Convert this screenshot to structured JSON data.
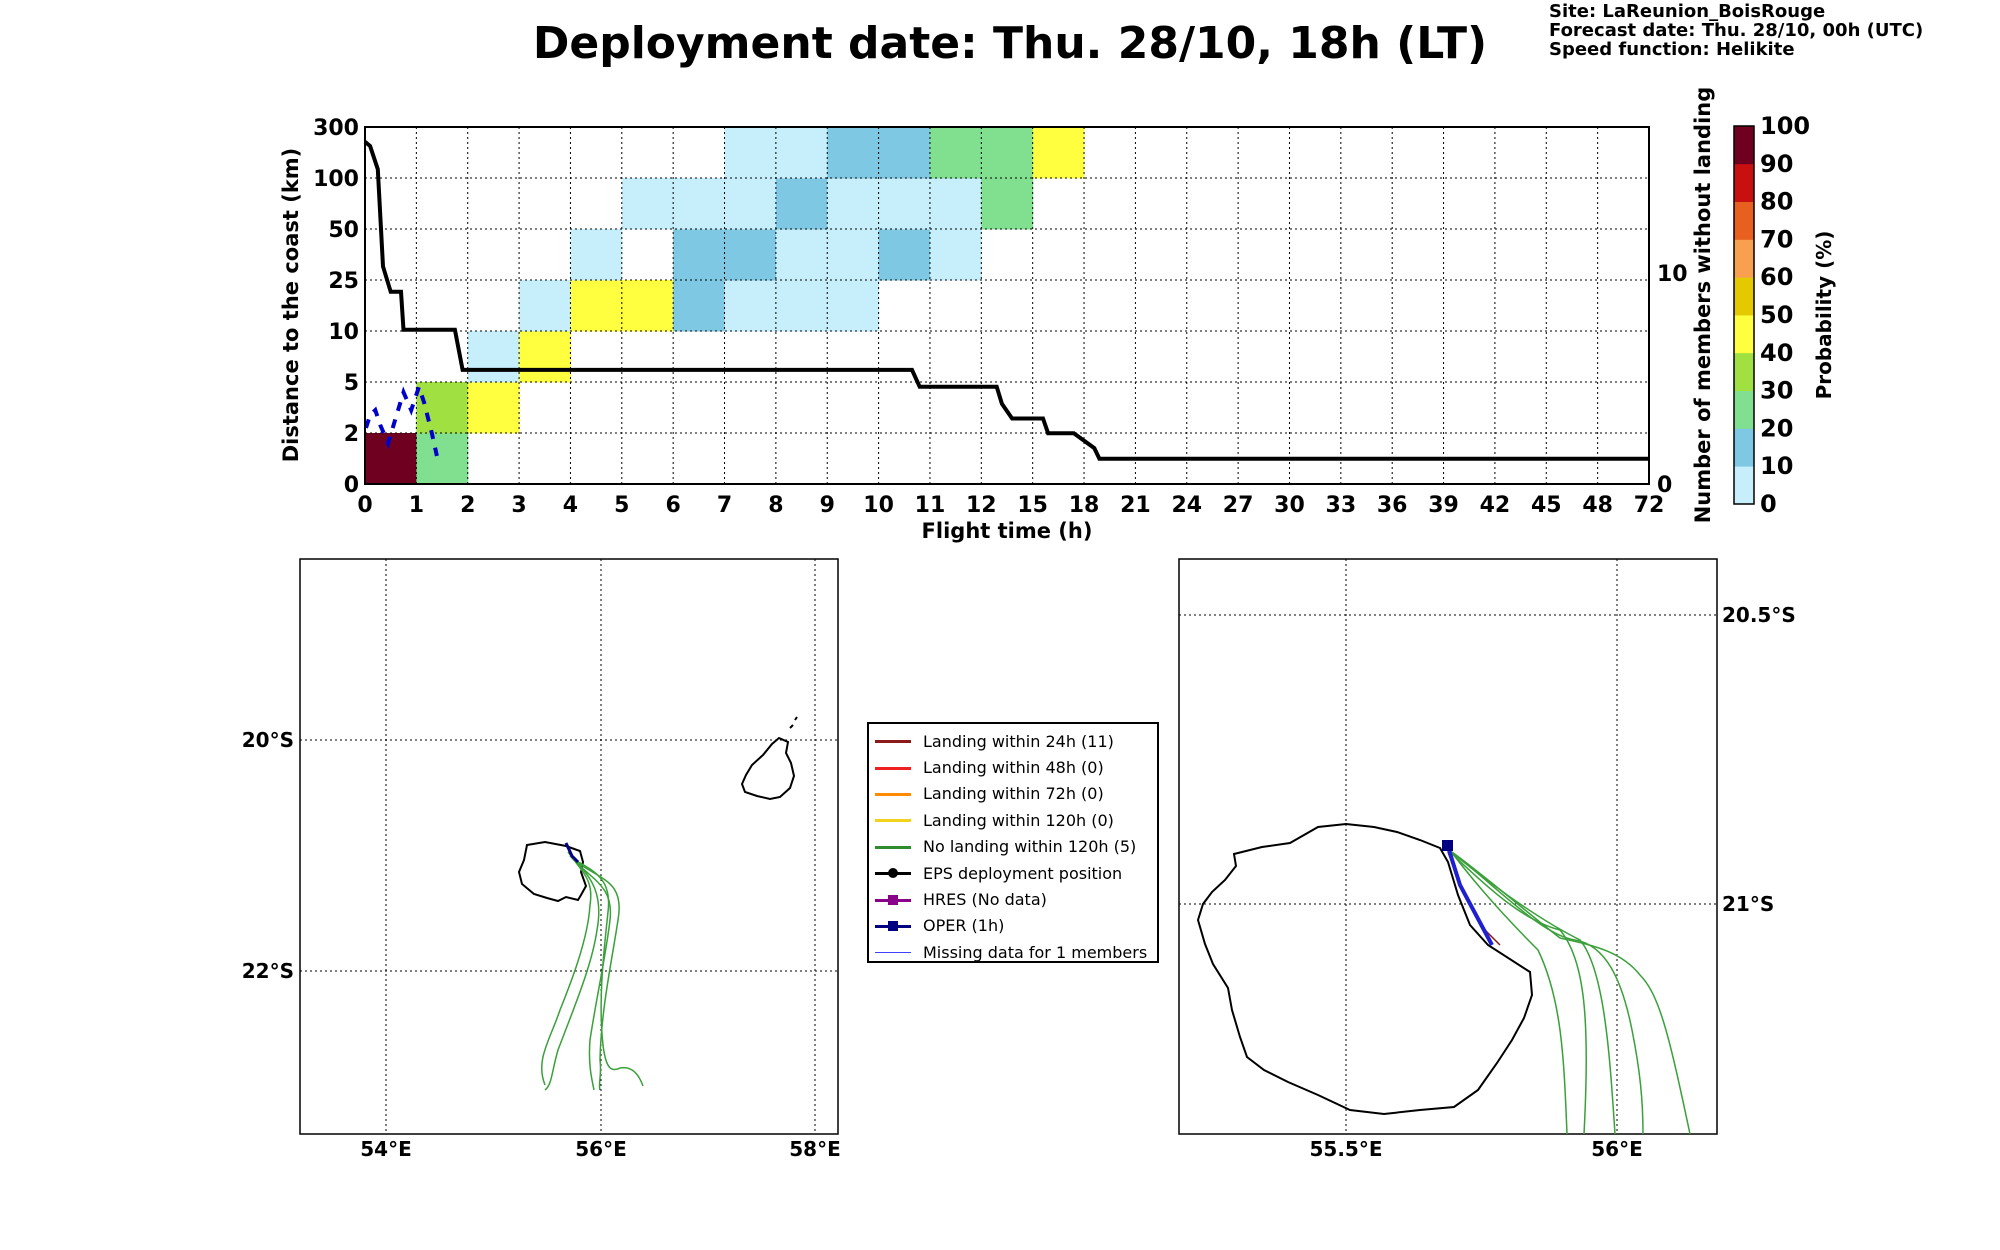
{
  "header": {
    "title": "Deployment date: Thu. 28/10, 18h (LT)",
    "site": "Site: LaReunion_BoisRouge",
    "forecast": "Forecast date: Thu. 28/10, 00h (UTC)",
    "speed": "Speed function: Helikite"
  },
  "chart_data": [
    {
      "type": "heatmap",
      "xlabel": "Flight time (h)",
      "ylabel": "Distance to the coast (km)",
      "y2label": "Number of members without landing",
      "x_ticks": [
        "0",
        "1",
        "2",
        "3",
        "4",
        "5",
        "6",
        "7",
        "8",
        "9",
        "10",
        "11",
        "12",
        "15",
        "18",
        "21",
        "24",
        "27",
        "30",
        "33",
        "36",
        "39",
        "42",
        "45",
        "48",
        "72"
      ],
      "y_ticks": [
        "0",
        "2",
        "5",
        "10",
        "25",
        "50",
        "100",
        "300"
      ],
      "y2_ticks": [
        "0",
        "10"
      ],
      "y2_range": [
        0,
        16.9
      ],
      "colorbar": {
        "label": "Probability (%)",
        "ticks": [
          "0",
          "10",
          "20",
          "30",
          "40",
          "50",
          "60",
          "70",
          "80",
          "90",
          "100"
        ],
        "colors": [
          "#c6eefb",
          "#7ec8e3",
          "#80e090",
          "#a0e040",
          "#ffff40",
          "#e4c800",
          "#f8a050",
          "#e86020",
          "#c81010",
          "#700020"
        ]
      },
      "grid": true,
      "cells": [
        {
          "x": 0,
          "y": 0,
          "p": 100
        },
        {
          "x": 1,
          "y": 0,
          "p": 30
        },
        {
          "x": 1,
          "y": 1,
          "p": 40
        },
        {
          "x": 2,
          "y": 1,
          "p": 50
        },
        {
          "x": 2,
          "y": 2,
          "p": 10
        },
        {
          "x": 3,
          "y": 2,
          "p": 50
        },
        {
          "x": 3,
          "y": 3,
          "p": 10
        },
        {
          "x": 4,
          "y": 3,
          "p": 50
        },
        {
          "x": 5,
          "y": 3,
          "p": 50
        },
        {
          "x": 6,
          "y": 3,
          "p": 20
        },
        {
          "x": 7,
          "y": 3,
          "p": 10
        },
        {
          "x": 8,
          "y": 3,
          "p": 10
        },
        {
          "x": 9,
          "y": 3,
          "p": 10
        },
        {
          "x": 4,
          "y": 4,
          "p": 10
        },
        {
          "x": 6,
          "y": 4,
          "p": 20
        },
        {
          "x": 7,
          "y": 4,
          "p": 20
        },
        {
          "x": 8,
          "y": 4,
          "p": 10
        },
        {
          "x": 9,
          "y": 4,
          "p": 10
        },
        {
          "x": 10,
          "y": 4,
          "p": 20
        },
        {
          "x": 11,
          "y": 4,
          "p": 10
        },
        {
          "x": 5,
          "y": 5,
          "p": 10
        },
        {
          "x": 6,
          "y": 5,
          "p": 10
        },
        {
          "x": 7,
          "y": 5,
          "p": 10
        },
        {
          "x": 8,
          "y": 5,
          "p": 20
        },
        {
          "x": 9,
          "y": 5,
          "p": 10
        },
        {
          "x": 10,
          "y": 5,
          "p": 10
        },
        {
          "x": 11,
          "y": 5,
          "p": 10
        },
        {
          "x": 12,
          "y": 5,
          "p": 30
        },
        {
          "x": 7,
          "y": 6,
          "p": 10
        },
        {
          "x": 8,
          "y": 6,
          "p": 10
        },
        {
          "x": 9,
          "y": 6,
          "p": 20
        },
        {
          "x": 10,
          "y": 6,
          "p": 20
        },
        {
          "x": 11,
          "y": 6,
          "p": 30
        },
        {
          "x": 12,
          "y": 6,
          "p": 30
        },
        {
          "x": 13,
          "y": 6,
          "p": 50
        }
      ],
      "members_without_landing": {
        "x": [
          0,
          0.1,
          0.25,
          0.35,
          0.5,
          0.7,
          0.75,
          1.75,
          1.9,
          10.65,
          10.8,
          12.3,
          12.4,
          12.6,
          13.2,
          13.3,
          13.8,
          14.2,
          14.3,
          15.2,
          15.3,
          25
        ],
        "y": [
          16.2,
          16.0,
          14.9,
          10.3,
          9.1,
          9.1,
          7.3,
          7.3,
          5.4,
          5.4,
          4.6,
          4.6,
          3.8,
          3.1,
          3.1,
          2.4,
          2.4,
          1.7,
          1.2,
          1.2,
          1.2,
          1.2
        ]
      },
      "oper_distance_km": {
        "x": [
          0.02,
          0.1,
          0.2,
          0.3,
          0.45,
          0.6,
          0.75,
          0.9,
          1.05,
          1.15,
          1.3,
          1.4
        ],
        "y": [
          1.1,
          1.35,
          1.45,
          1.15,
          0.8,
          1.3,
          1.8,
          1.45,
          1.9,
          1.6,
          1.0,
          0.55
        ]
      }
    }
  ],
  "maps": {
    "left": {
      "lon_labels": [
        "54°E",
        "56°E",
        "58°E"
      ],
      "lat_labels": [
        "20°S",
        "22°S"
      ]
    },
    "right": {
      "lon_labels": [
        "55.5°E",
        "56°E"
      ],
      "lat_labels": [
        "20.5°S",
        "21°S"
      ]
    }
  },
  "legend": [
    {
      "label": "Landing within 24h (11)",
      "color": "#8b1a1a",
      "marker": "none"
    },
    {
      "label": "Landing within 48h (0)",
      "color": "#ee2020",
      "marker": "none"
    },
    {
      "label": "Landing within 72h (0)",
      "color": "#ff8c00",
      "marker": "none"
    },
    {
      "label": "Landing within 120h (0)",
      "color": "#f2d21b",
      "marker": "none"
    },
    {
      "label": "No landing within 120h (5)",
      "color": "#2e8b2e",
      "marker": "none"
    },
    {
      "label": "EPS deployment position",
      "color": "#000000",
      "marker": "circle"
    },
    {
      "label": "HRES (No data)",
      "color": "#8b008b",
      "marker": "square"
    },
    {
      "label": "OPER (1h)",
      "color": "#000080",
      "marker": "square"
    },
    {
      "label": "Missing data for 1 members",
      "color": "#4040ff",
      "marker": "none"
    }
  ]
}
